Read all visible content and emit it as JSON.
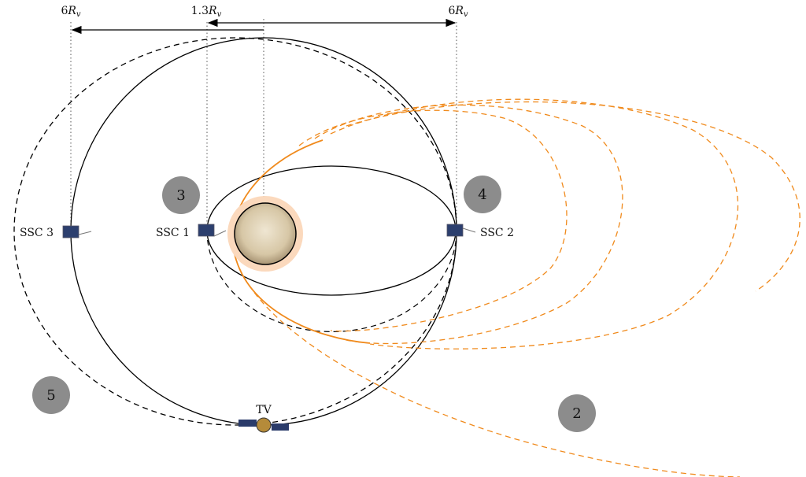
{
  "distances": [
    {
      "number": "6",
      "symbol": "R",
      "subscript": "v"
    },
    {
      "number": "1.3",
      "symbol": "R",
      "subscript": "v"
    },
    {
      "number": "6",
      "symbol": "R",
      "subscript": "v"
    }
  ],
  "spacecraft": [
    {
      "label": "SSC 3"
    },
    {
      "label": "SSC 1"
    },
    {
      "label": "SSC 2"
    },
    {
      "label": "TV"
    }
  ],
  "regions": [
    "3",
    "4",
    "5",
    "2"
  ]
}
